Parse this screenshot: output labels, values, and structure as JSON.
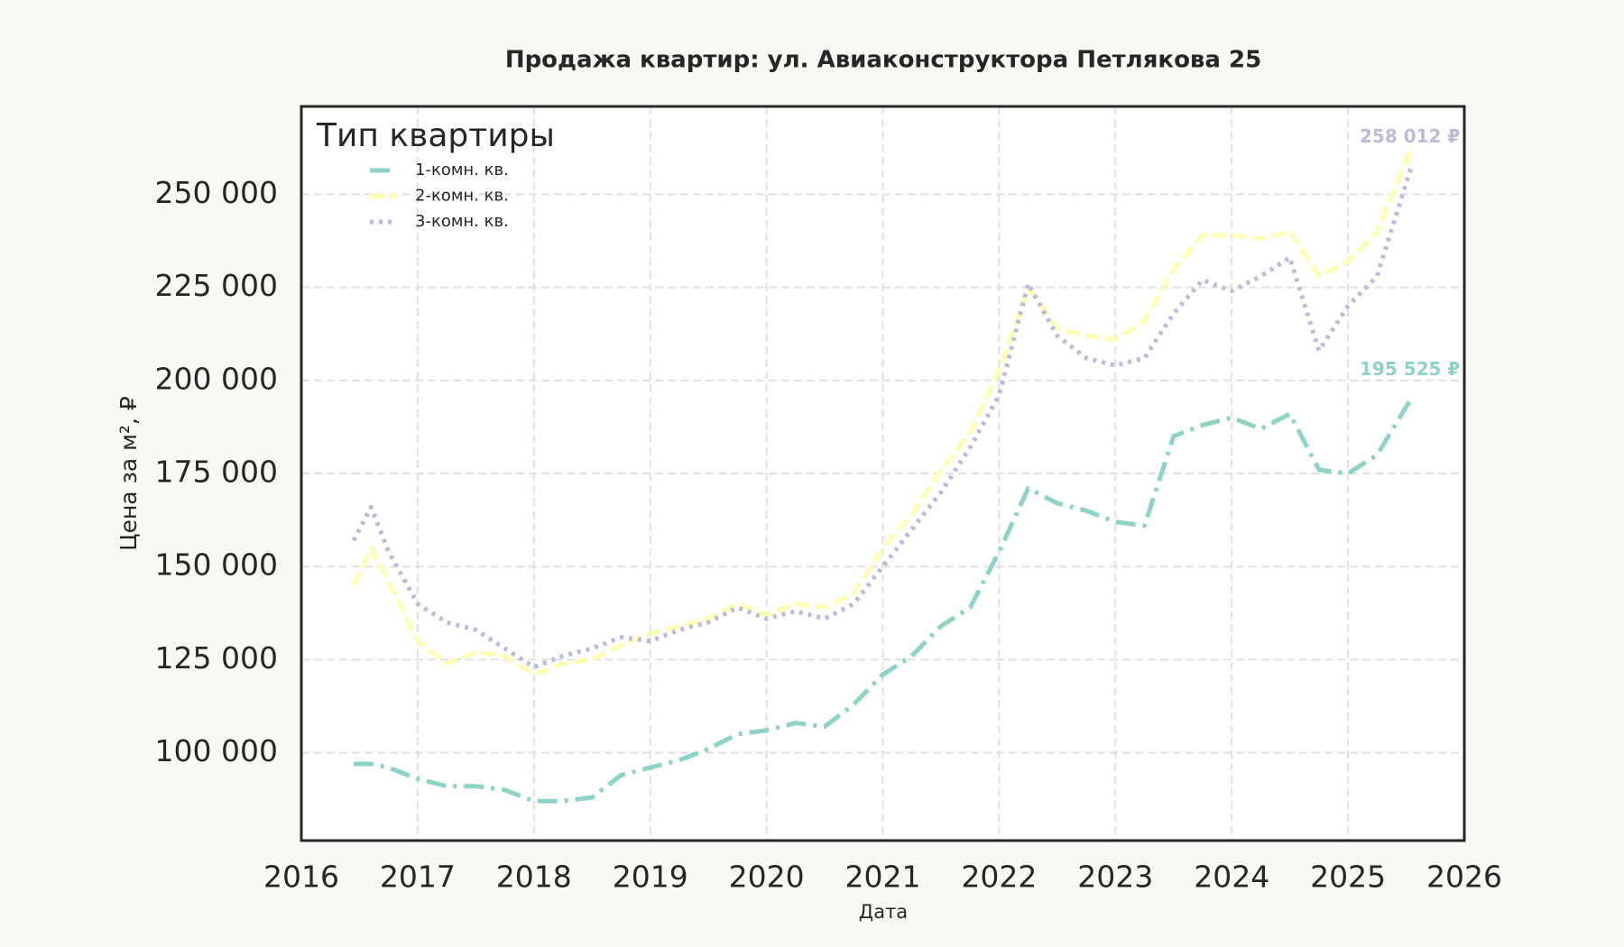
{
  "chart_data": {
    "type": "line",
    "title": "Продажа квартир: ул. Авиаконструктора Петлякова 25",
    "x_label": "Дата",
    "y_label": "Цена за м², ₽",
    "legend_title": "Тип квартиры",
    "legend_position": "upper left",
    "grid": true,
    "x": [
      2016.45,
      2016.6,
      2016.75,
      2017.0,
      2017.25,
      2017.5,
      2017.75,
      2018.0,
      2018.25,
      2018.5,
      2018.75,
      2019.0,
      2019.25,
      2019.5,
      2019.75,
      2020.0,
      2020.25,
      2020.5,
      2020.75,
      2021.0,
      2021.25,
      2021.5,
      2021.75,
      2022.0,
      2022.25,
      2022.5,
      2022.75,
      2023.0,
      2023.25,
      2023.5,
      2023.75,
      2024.0,
      2024.25,
      2024.5,
      2024.75,
      2025.0,
      2025.25,
      2025.55
    ],
    "xlim": [
      2016,
      2026
    ],
    "xticks": [
      2016,
      2017,
      2018,
      2019,
      2020,
      2021,
      2022,
      2023,
      2024,
      2025,
      2026
    ],
    "ylim": [
      76400,
      273600
    ],
    "yticks": [
      {
        "value": 100000,
        "label": "100 000"
      },
      {
        "value": 125000,
        "label": "125 000"
      },
      {
        "value": 150000,
        "label": "150 000"
      },
      {
        "value": 175000,
        "label": "175 000"
      },
      {
        "value": 200000,
        "label": "200 000"
      },
      {
        "value": 225000,
        "label": "225 000"
      },
      {
        "value": 250000,
        "label": "250 000"
      }
    ],
    "series": [
      {
        "name": "1-комн. кв.",
        "color": "#8dd3c7",
        "linestyle": "dashdot",
        "end_label": "195 525 ₽",
        "values": [
          97000,
          97000,
          96000,
          93000,
          91000,
          91000,
          90000,
          87000,
          87000,
          88000,
          94000,
          96000,
          98000,
          101000,
          105000,
          106000,
          108000,
          107000,
          113000,
          121000,
          126000,
          134000,
          139000,
          154000,
          171000,
          167000,
          165000,
          162000,
          161000,
          185000,
          188000,
          190000,
          187000,
          191000,
          176000,
          175000,
          180000,
          195525
        ]
      },
      {
        "name": "2-комн. кв.",
        "color": "#ffffb3",
        "linestyle": "dashed",
        "values": [
          145000,
          155000,
          146000,
          130000,
          124000,
          127000,
          126000,
          121000,
          124000,
          125000,
          129000,
          132000,
          134000,
          136000,
          140000,
          137000,
          140000,
          139000,
          143000,
          155000,
          164000,
          176000,
          186000,
          203000,
          225000,
          214000,
          212000,
          211000,
          216000,
          230000,
          239000,
          239000,
          238000,
          240000,
          228000,
          232000,
          240000,
          263000
        ]
      },
      {
        "name": "3-комн. кв.",
        "color": "#bebada",
        "linestyle": "dotted",
        "end_label": "258 012 ₽",
        "values": [
          157000,
          166000,
          154000,
          140000,
          135000,
          133000,
          128000,
          123000,
          126000,
          128000,
          131000,
          130000,
          133000,
          135000,
          139000,
          136000,
          138000,
          136000,
          140000,
          150000,
          160000,
          170000,
          182000,
          196000,
          226000,
          212000,
          206000,
          204000,
          206000,
          218000,
          227000,
          224000,
          228000,
          233000,
          208000,
          220000,
          228000,
          258012
        ]
      }
    ]
  }
}
